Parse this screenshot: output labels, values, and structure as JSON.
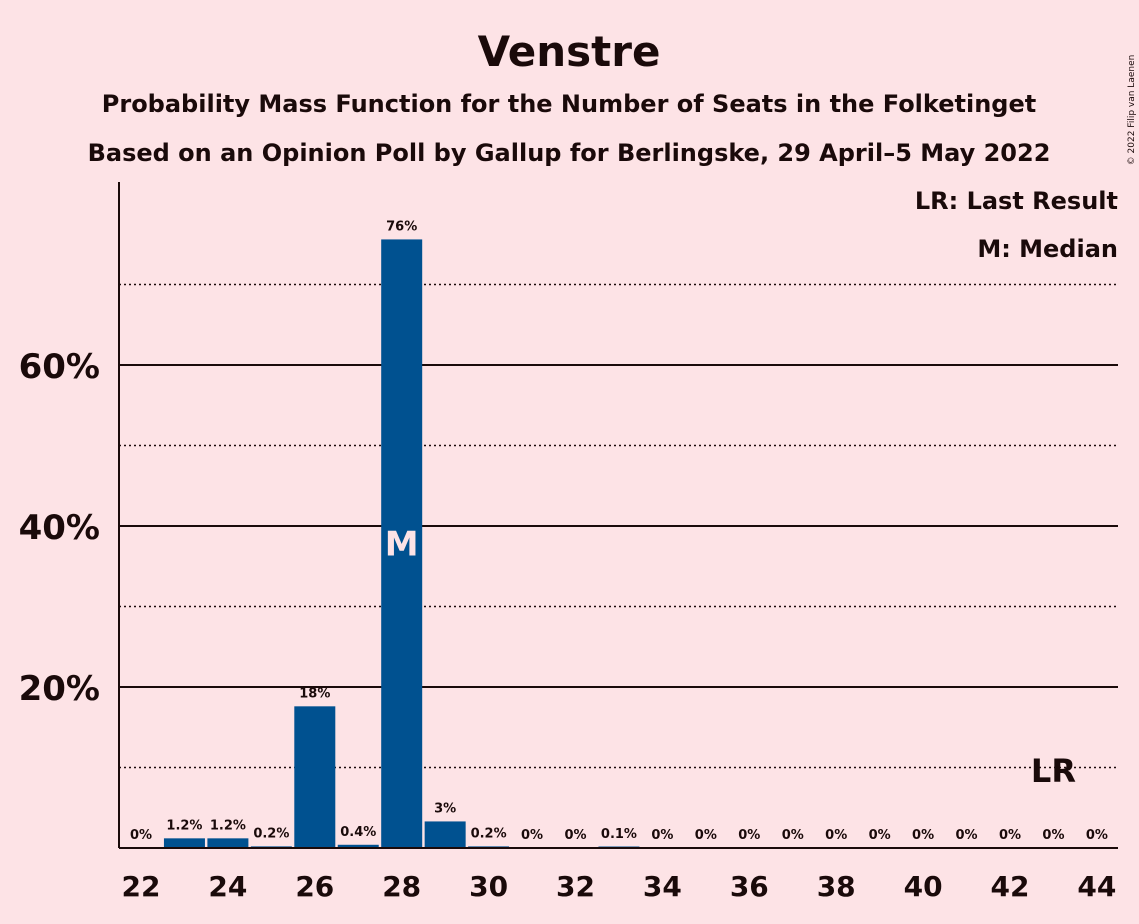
{
  "chart_data": {
    "type": "bar",
    "title": "Venstre",
    "subtitle_line1": "Probability Mass Function for the Number of Seats in the Folketinget",
    "subtitle_line2": "Based on an Opinion Poll by Gallup for Berlingske, 29 April–5 May 2022",
    "legend": {
      "last_result": "LR: Last Result",
      "median": "M: Median",
      "placement": "top-right"
    },
    "copyright": "© 2022 Filip van Laenen",
    "categories": [
      22,
      23,
      24,
      25,
      26,
      27,
      28,
      29,
      30,
      31,
      32,
      33,
      34,
      35,
      36,
      37,
      38,
      39,
      40,
      41,
      42,
      43,
      44
    ],
    "values": [
      0,
      1.2,
      1.2,
      0.2,
      17.6,
      0.4,
      75.6,
      3.3,
      0.2,
      0,
      0,
      0.1,
      0,
      0,
      0,
      0,
      0,
      0,
      0,
      0,
      0,
      0,
      0
    ],
    "bar_labels": [
      "0%",
      "1.2%",
      "1.2%",
      "0.2%",
      "18%",
      "0.4%",
      "76%",
      "3%",
      "0.2%",
      "0%",
      "0%",
      "0.1%",
      "0%",
      "0%",
      "0%",
      "0%",
      "0%",
      "0%",
      "0%",
      "0%",
      "0%",
      "0%",
      "0%"
    ],
    "x_tick_labels": [
      "22",
      "24",
      "26",
      "28",
      "30",
      "32",
      "34",
      "36",
      "38",
      "40",
      "42",
      "44"
    ],
    "y_tick_labels": [
      "20%",
      "40%",
      "60%"
    ],
    "y_ticks": [
      20,
      40,
      60
    ],
    "y_minor_gridlines": [
      10,
      30,
      50,
      70
    ],
    "ylim": [
      0,
      83
    ],
    "median_seat": 28,
    "median_marker": "M",
    "last_result_seat": 43,
    "last_result_marker": "LR",
    "grid": true,
    "colors": {
      "bar": "#005190",
      "background": "#FDE3E6",
      "text": "#1a0a0a"
    }
  }
}
